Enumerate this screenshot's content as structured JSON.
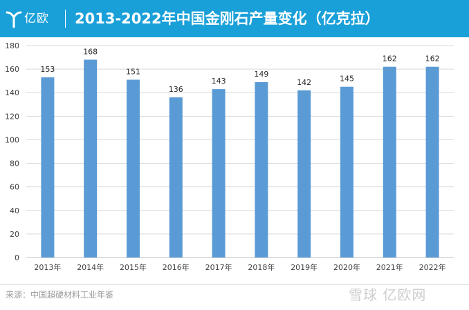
{
  "header": {
    "logo_text": "亿欧",
    "title": "2013-2022年中国金刚石产量变化（亿克拉）",
    "background_color": "#1aa0d9"
  },
  "chart_data": {
    "type": "bar",
    "title": "2013-2022年中国金刚石产量变化（亿克拉）",
    "categories": [
      "2013年",
      "2014年",
      "2015年",
      "2016年",
      "2017年",
      "2018年",
      "2019年",
      "2020年",
      "2021年",
      "2022年"
    ],
    "values": [
      153,
      168,
      151,
      136,
      143,
      149,
      142,
      145,
      162,
      162
    ],
    "data_labels": [
      "153",
      "168",
      "151",
      "136",
      "143",
      "149",
      "142",
      "145",
      "162",
      "162"
    ],
    "y_ticks": [
      "0",
      "20",
      "40",
      "60",
      "80",
      "100",
      "120",
      "140",
      "160",
      "180"
    ],
    "ylim": [
      0,
      180
    ],
    "grid": true,
    "bar_color": "#5b9bd5"
  },
  "footer": {
    "source": "来源：中国超硬材料工业年鉴",
    "watermark": "雪球 亿欧网"
  }
}
